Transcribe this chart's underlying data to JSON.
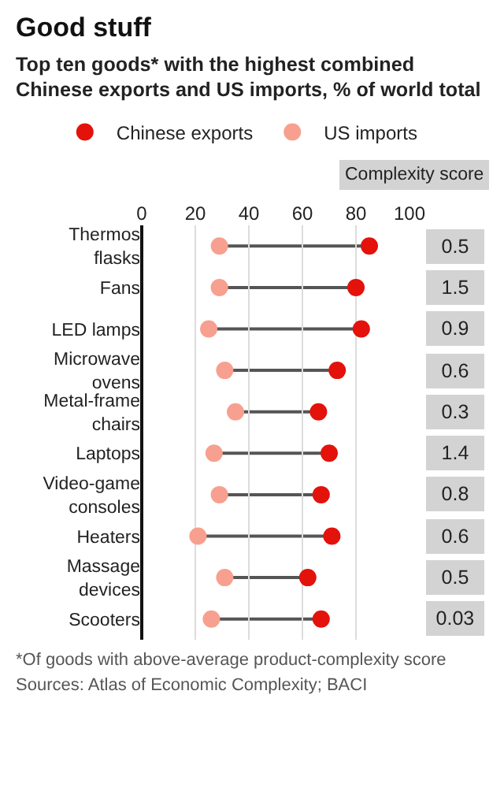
{
  "chart_data": {
    "type": "scatter",
    "orientation": "horizontal",
    "title": "Good stuff",
    "subtitle": "Top ten goods* with the highest combined Chinese exports and US imports, % of world total",
    "categories": [
      "Thermos flasks",
      "Fans",
      "LED lamps",
      "Microwave ovens",
      "Metal-frame chairs",
      "Laptops",
      "Video-game consoles",
      "Heaters",
      "Massage devices",
      "Scooters"
    ],
    "series": [
      {
        "name": "Chinese exports",
        "color": "#e3120b",
        "values": [
          85,
          80,
          82,
          73,
          66,
          70,
          67,
          71,
          62,
          67
        ]
      },
      {
        "name": "US imports",
        "color": "#f7a08f",
        "values": [
          29,
          29,
          25,
          31,
          35,
          27,
          29,
          21,
          31,
          26
        ]
      }
    ],
    "xlim": [
      0,
      100
    ],
    "xticks": [
      0,
      20,
      40,
      60,
      80,
      100
    ],
    "grid": "x",
    "legend": "top left",
    "marker": "circle",
    "annotations": [
      "Complexity score",
      "0.5",
      "1.5",
      "0.9",
      "0.6",
      "0.3",
      "1.4",
      "0.8",
      "0.6",
      "0.5",
      "0.03",
      "*Of goods with above-average product-complexity score",
      "Sources: Atlas of Economic Complexity; BACI"
    ]
  }
}
